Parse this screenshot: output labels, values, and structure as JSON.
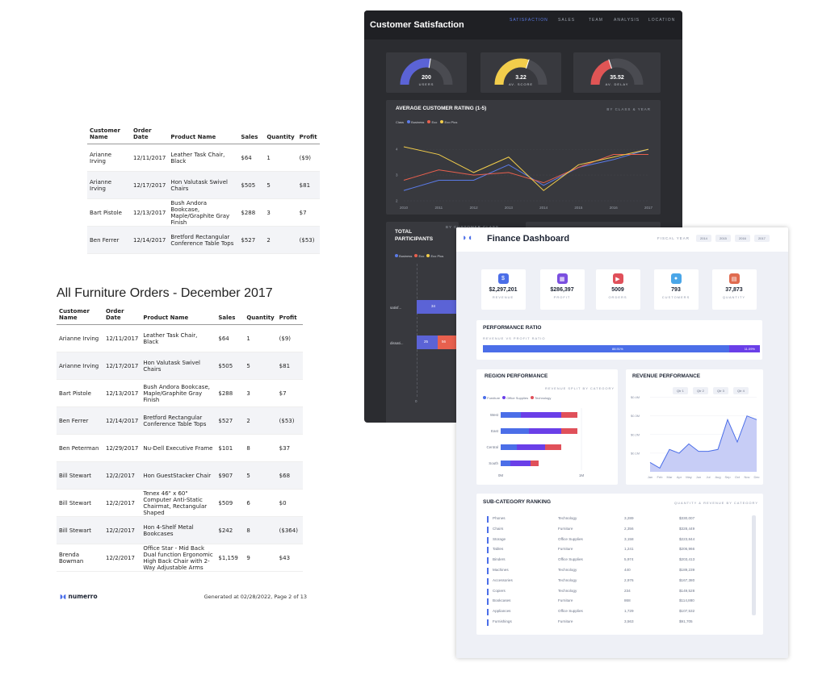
{
  "report_top": {
    "headers": [
      "Customer Name",
      "Order Date",
      "Product Name",
      "Sales",
      "Quantity",
      "Profit"
    ],
    "rows": [
      [
        "Arianne Irving",
        "12/11/2017",
        "Leather Task Chair, Black",
        "$64",
        "1",
        "($9)"
      ],
      [
        "Arianne Irving",
        "12/17/2017",
        "Hon Valutask Swivel Chairs",
        "$505",
        "5",
        "$81"
      ],
      [
        "Bart Pistole",
        "12/13/2017",
        "Bush Andora Bookcase, Maple/Graphite Gray Finish",
        "$288",
        "3",
        "$7"
      ],
      [
        "Ben Ferrer",
        "12/14/2017",
        "Bretford Rectangular Conference Table Tops",
        "$527",
        "2",
        "($53)"
      ]
    ]
  },
  "report_main": {
    "title": "All Furniture Orders - December 2017",
    "headers": [
      "Customer Name",
      "Order Date",
      "Product Name",
      "Sales",
      "Quantity",
      "Profit"
    ],
    "rows": [
      [
        "Arianne Irving",
        "12/11/2017",
        "Leather Task Chair, Black",
        "$64",
        "1",
        "($9)"
      ],
      [
        "Arianne Irving",
        "12/17/2017",
        "Hon Valutask Swivel Chairs",
        "$505",
        "5",
        "$81"
      ],
      [
        "Bart Pistole",
        "12/13/2017",
        "Bush Andora Bookcase, Maple/Graphite Gray Finish",
        "$288",
        "3",
        "$7"
      ],
      [
        "Ben Ferrer",
        "12/14/2017",
        "Bretford Rectangular Conference Table Tops",
        "$527",
        "2",
        "($53)"
      ],
      [
        "Ben Peterman",
        "12/29/2017",
        "Nu-Dell Executive Frame",
        "$101",
        "8",
        "$37"
      ],
      [
        "Bill Stewart",
        "12/2/2017",
        "Hon GuestStacker Chair",
        "$907",
        "5",
        "$68"
      ],
      [
        "Bill Stewart",
        "12/2/2017",
        "Tenex 46\" x 60\" Computer Anti-Static Chairmat, Rectangular Shaped",
        "$509",
        "6",
        "$0"
      ],
      [
        "Bill Stewart",
        "12/2/2017",
        "Hon 4-Shelf Metal Bookcases",
        "$242",
        "8",
        "($364)"
      ],
      [
        "Brenda Bowman",
        "12/2/2017",
        "Office Star - Mid Back Dual function Ergonomic High Back Chair with 2-Way Adjustable Arms",
        "$1,159",
        "9",
        "$43"
      ]
    ],
    "logo_text": "numerro",
    "footer": "Generated at 02/28/2022, Page 2 of 13"
  },
  "dark_dashboard": {
    "title": "Customer Satisfaction",
    "nav": [
      "SATISFACTION",
      "SALES",
      "TEAM",
      "ANALYSIS",
      "LOCATION"
    ],
    "active_nav": "SATISFACTION",
    "gauges": [
      {
        "value": "200",
        "label": "USERS",
        "color": "#5b63d6",
        "fill": 0.55
      },
      {
        "value": "3.22",
        "label": "AV. SCORE",
        "color": "#f2cd4b",
        "fill": 0.6
      },
      {
        "value": "35.52",
        "label": "AV. DELAY",
        "color": "#e05555",
        "fill": 0.4
      }
    ],
    "rating_title": "AVERAGE CUSTOMER RATING (1-5)",
    "rating_sub": "BY CLASS & YEAR",
    "legend_label": "Class",
    "legend": [
      {
        "name": "Business",
        "color": "#5b7be8"
      },
      {
        "name": "Eco",
        "color": "#e8604e"
      },
      {
        "name": "Eco Plus",
        "color": "#f2cd4b"
      }
    ],
    "participants_title": "TOTAL PARTICIPANTS",
    "participants_sub": "BY CUSTOMER CLASS",
    "participants_rows": [
      "satisf...",
      "dissati..."
    ],
    "participants_seg_labels": [
      "34",
      "25",
      "56"
    ],
    "participants_axis": "0"
  },
  "chart_data": [
    {
      "type": "line",
      "title": "AVERAGE CUSTOMER RATING (1-5)",
      "x": [
        "2010",
        "2011",
        "2012",
        "2013",
        "2014",
        "2015",
        "2016",
        "2017"
      ],
      "yticks": [
        "2",
        "3",
        "4"
      ],
      "ylim": [
        2,
        4.6
      ],
      "series": [
        {
          "name": "Business",
          "values": [
            2.4,
            2.8,
            2.8,
            3.4,
            2.6,
            3.3,
            3.6,
            4.0
          ]
        },
        {
          "name": "Eco",
          "values": [
            2.8,
            3.2,
            3.0,
            3.1,
            2.7,
            3.3,
            3.8,
            3.8
          ]
        },
        {
          "name": "Eco Plus",
          "values": [
            4.1,
            3.8,
            3.1,
            3.7,
            2.4,
            3.4,
            3.7,
            4.0
          ]
        }
      ]
    },
    {
      "type": "bar",
      "title": "REGION PERFORMANCE",
      "categories": [
        "West",
        "East",
        "Central",
        "South"
      ],
      "xticks": [
        "0M",
        "1M"
      ],
      "series": [
        {
          "name": "Furniture",
          "values": [
            0.25,
            0.35,
            0.2,
            0.12
          ]
        },
        {
          "name": "Office Supplies",
          "values": [
            0.5,
            0.4,
            0.35,
            0.25
          ]
        },
        {
          "name": "Technology",
          "values": [
            0.2,
            0.2,
            0.2,
            0.1
          ]
        }
      ]
    },
    {
      "type": "area",
      "title": "REVENUE PERFORMANCE",
      "x": [
        "Jan",
        "Feb",
        "Mar",
        "Apr",
        "May",
        "Jun",
        "Jul",
        "Aug",
        "Sep",
        "Oct",
        "Nov",
        "Dec"
      ],
      "yticks": [
        "$0.1M",
        "$0.2M",
        "$0.3M",
        "$0.4M"
      ],
      "ylim": [
        0,
        0.42
      ],
      "values": [
        0.05,
        0.02,
        0.12,
        0.1,
        0.15,
        0.11,
        0.11,
        0.12,
        0.28,
        0.16,
        0.3,
        0.28
      ]
    }
  ],
  "finance": {
    "title": "Finance Dashboard",
    "fiscal_label": "FISCAL YEAR",
    "years": [
      "2014",
      "2015",
      "2016",
      "2017"
    ],
    "kpis": [
      {
        "value": "$2,297,201",
        "label": "REVENUE",
        "icon": "dollar-icon",
        "glyph": "$",
        "color": "#4b6ee8",
        "bg": "#e6ebfb"
      },
      {
        "value": "$286,397",
        "label": "PROFIT",
        "icon": "bank-icon",
        "glyph": "▦",
        "color": "#7b4fe0",
        "bg": "#eee8fb"
      },
      {
        "value": "5009",
        "label": "ORDERS",
        "icon": "truck-icon",
        "glyph": "▶",
        "color": "#e0505a",
        "bg": "#fbe8ea"
      },
      {
        "value": "793",
        "label": "CUSTOMERS",
        "icon": "people-icon",
        "glyph": "●",
        "color": "#4aa6e8",
        "bg": "#e6f2fb"
      },
      {
        "value": "37,873",
        "label": "QUANTITY",
        "icon": "box-icon",
        "glyph": "▤",
        "color": "#e06b4f",
        "bg": "#fbebe6"
      }
    ],
    "ratio_title": "PERFORMANCE RATIO",
    "ratio_sub": "REVENUE VS PROFIT RATIO",
    "ratio_left": "88.91%",
    "ratio_right": "11.09%",
    "ratio_value": 0.8891,
    "region_title": "REGION PERFORMANCE",
    "region_sub": "REVENUE SPLIT BY CATEGORY",
    "region_legend": [
      {
        "name": "Furniture",
        "color": "#4b6ee8"
      },
      {
        "name": "Office Supplies",
        "color": "#6a3fe8"
      },
      {
        "name": "Technology",
        "color": "#e0505a"
      }
    ],
    "revenue_title": "REVENUE PERFORMANCE",
    "quarters": [
      "Qtr 1",
      "Qtr 2",
      "Qtr 3",
      "Qtr 4"
    ],
    "subcat_title": "SUB-CATEGORY RANKING",
    "subcat_sub": "QUANTITY & REVENUE BY CATEGORY",
    "subcat_rows": [
      [
        "Phones",
        "Technology",
        "3,289",
        "$330,007"
      ],
      [
        "Chairs",
        "Furniture",
        "2,356",
        "$328,449"
      ],
      [
        "Storage",
        "Office Supplies",
        "3,158",
        "$223,844"
      ],
      [
        "Tables",
        "Furniture",
        "1,241",
        "$206,966"
      ],
      [
        "Binders",
        "Office Supplies",
        "5,974",
        "$203,413"
      ],
      [
        "Machines",
        "Technology",
        "440",
        "$189,239"
      ],
      [
        "Accessories",
        "Technology",
        "2,976",
        "$167,380"
      ],
      [
        "Copiers",
        "Technology",
        "234",
        "$149,528"
      ],
      [
        "Bookcases",
        "Furniture",
        "868",
        "$114,880"
      ],
      [
        "Appliances",
        "Office Supplies",
        "1,729",
        "$107,532"
      ],
      [
        "Furnishings",
        "Furniture",
        "3,563",
        "$91,705"
      ]
    ]
  }
}
